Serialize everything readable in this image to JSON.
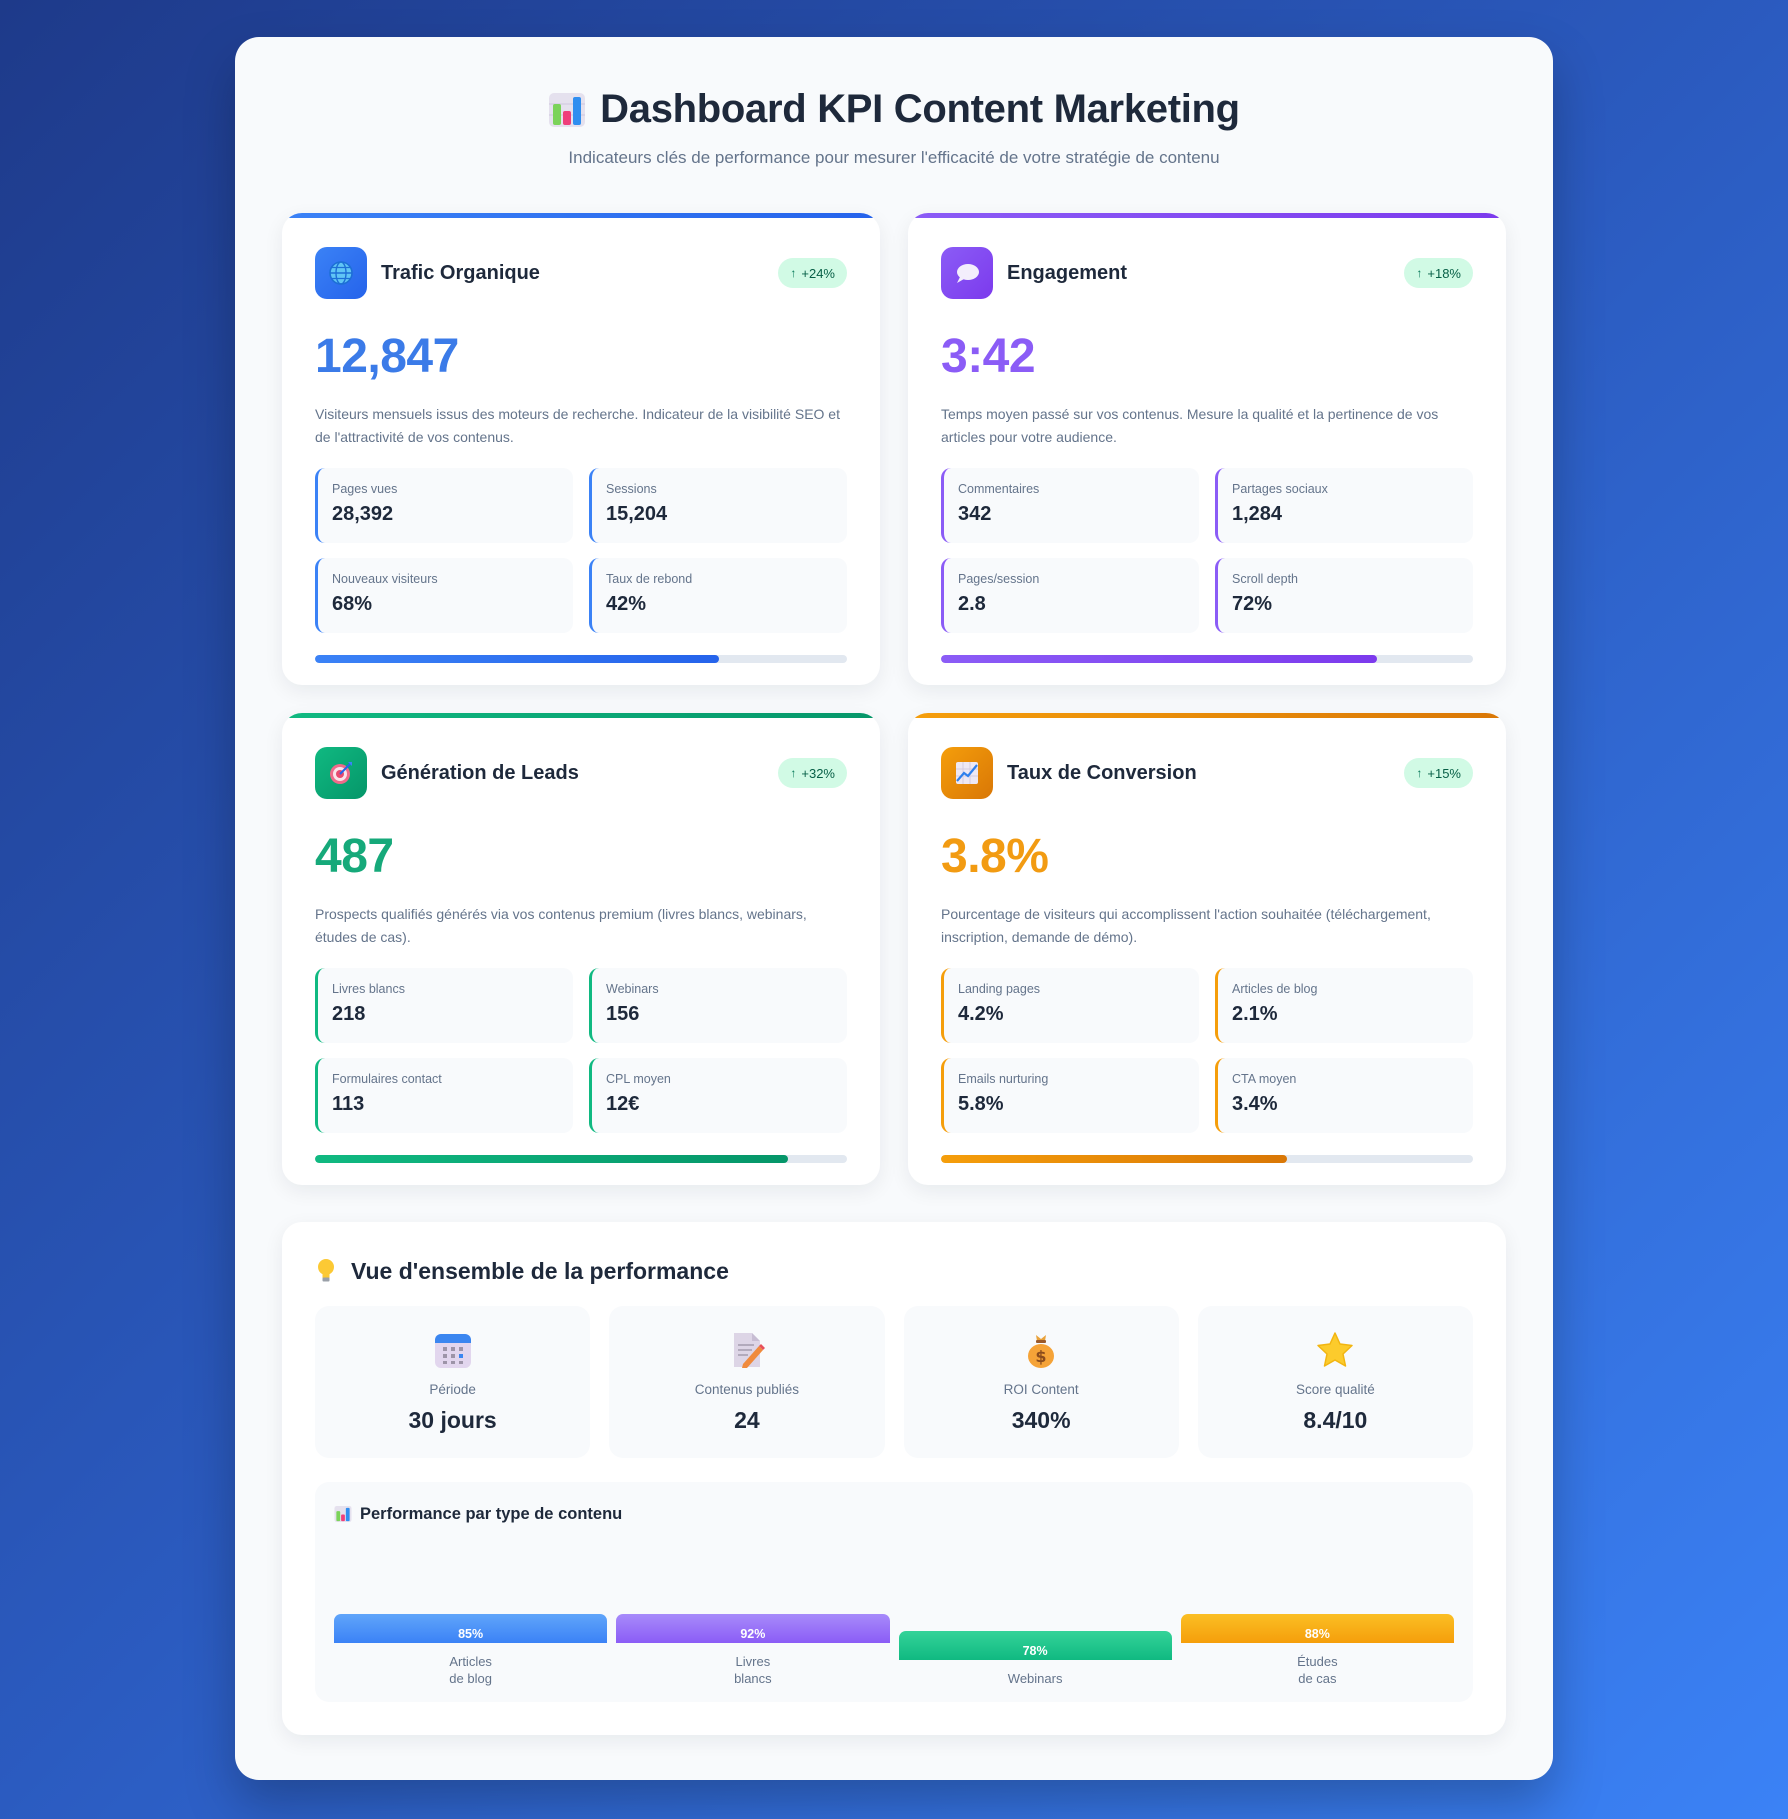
{
  "header": {
    "title_icon": "bar-chart-icon",
    "title": "Dashboard KPI Content Marketing",
    "subtitle": "Indicateurs clés de performance pour mesurer l'efficacité de votre stratégie de contenu"
  },
  "cards": [
    {
      "icon": "globe-icon",
      "title": "Trafic Organique",
      "trend_arrow": "↑",
      "trend": "+24%",
      "value": "12,847",
      "description": "Visiteurs mensuels issus des moteurs de recherche. Indicateur de la visibilité SEO et de l'attractivité de vos contenus.",
      "metrics": [
        {
          "label": "Pages vues",
          "value": "28,392"
        },
        {
          "label": "Sessions",
          "value": "15,204"
        },
        {
          "label": "Nouveaux visiteurs",
          "value": "68%"
        },
        {
          "label": "Taux de rebond",
          "value": "42%"
        }
      ],
      "progress": 76,
      "accent": "#3b82f6"
    },
    {
      "icon": "speech-bubble-icon",
      "title": "Engagement",
      "trend_arrow": "↑",
      "trend": "+18%",
      "value": "3:42",
      "description": "Temps moyen passé sur vos contenus. Mesure la qualité et la pertinence de vos articles pour votre audience.",
      "metrics": [
        {
          "label": "Commentaires",
          "value": "342"
        },
        {
          "label": "Partages sociaux",
          "value": "1,284"
        },
        {
          "label": "Pages/session",
          "value": "2.8"
        },
        {
          "label": "Scroll depth",
          "value": "72%"
        }
      ],
      "progress": 82,
      "accent": "#8b5cf6"
    },
    {
      "icon": "target-icon",
      "title": "Génération de Leads",
      "trend_arrow": "↑",
      "trend": "+32%",
      "value": "487",
      "description": "Prospects qualifiés générés via vos contenus premium (livres blancs, webinars, études de cas).",
      "metrics": [
        {
          "label": "Livres blancs",
          "value": "218"
        },
        {
          "label": "Webinars",
          "value": "156"
        },
        {
          "label": "Formulaires contact",
          "value": "113"
        },
        {
          "label": "CPL moyen",
          "value": "12€"
        }
      ],
      "progress": 89,
      "accent": "#10b981"
    },
    {
      "icon": "chart-increasing-icon",
      "title": "Taux de Conversion",
      "trend_arrow": "↑",
      "trend": "+15%",
      "value": "3.8%",
      "description": "Pourcentage de visiteurs qui accomplissent l'action souhaitée (téléchargement, inscription, demande de démo).",
      "metrics": [
        {
          "label": "Landing pages",
          "value": "4.2%"
        },
        {
          "label": "Articles de blog",
          "value": "2.1%"
        },
        {
          "label": "Emails nurturing",
          "value": "5.8%"
        },
        {
          "label": "CTA moyen",
          "value": "3.4%"
        }
      ],
      "progress": 65,
      "accent": "#f59e0b"
    }
  ],
  "overview": {
    "icon": "light-bulb-icon",
    "title": "Vue d'ensemble de la performance",
    "stats": [
      {
        "icon": "calendar-icon",
        "label": "Période",
        "value": "30 jours"
      },
      {
        "icon": "memo-icon",
        "label": "Contenus publiés",
        "value": "24"
      },
      {
        "icon": "money-bag-icon",
        "label": "ROI Content",
        "value": "340%"
      },
      {
        "icon": "star-icon",
        "label": "Score qualité",
        "value": "8.4/10"
      }
    ],
    "chart": {
      "icon": "bar-chart-icon",
      "title": "Performance par type de contenu",
      "bars": [
        {
          "label": "Articles\nde blog",
          "value": "85%",
          "color": "#3b82f6"
        },
        {
          "label": "Livres\nblancs",
          "value": "92%",
          "color": "#8b5cf6"
        },
        {
          "label": "Webinars",
          "value": "78%",
          "color": "#10b981"
        },
        {
          "label": "Études\nde cas",
          "value": "88%",
          "color": "#f59e0b"
        }
      ]
    }
  },
  "chart_data": {
    "type": "bar",
    "title": "Performance par type de contenu",
    "categories": [
      "Articles de blog",
      "Livres blancs",
      "Webinars",
      "Études de cas"
    ],
    "values": [
      85,
      92,
      78,
      88
    ],
    "xlabel": "",
    "ylabel": "",
    "ylim": [
      0,
      100
    ],
    "grid": false
  }
}
